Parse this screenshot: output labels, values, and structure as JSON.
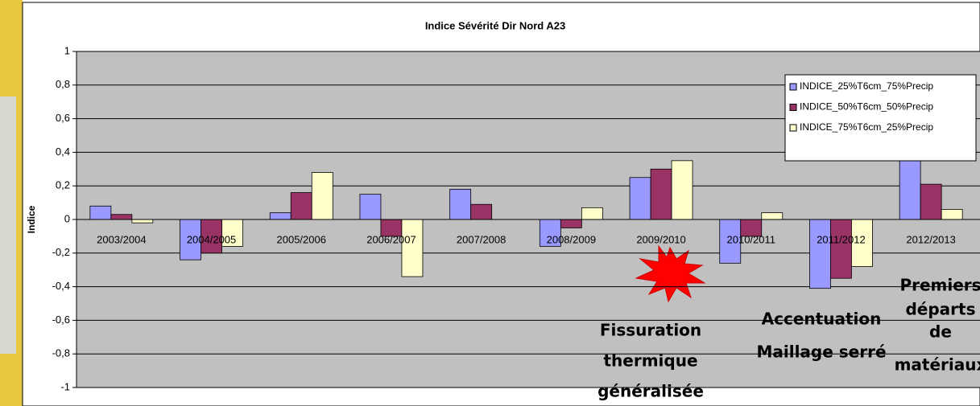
{
  "chart_data": {
    "type": "bar",
    "title": "Indice Sévérité Dir Nord A23",
    "y_label": "Indice",
    "categories": [
      "2003/2004",
      "2004/2005",
      "2005/2006",
      "2006/2007",
      "2007/2008",
      "2008/2009",
      "2009/2010",
      "2010/2011",
      "2011/2012",
      "2012/2013"
    ],
    "series": [
      {
        "name": "INDICE_25%T6cm_75%Precip",
        "color": "#9999ff",
        "values": [
          0.08,
          -0.24,
          0.04,
          0.15,
          0.18,
          -0.16,
          0.25,
          -0.26,
          -0.41,
          0.36
        ]
      },
      {
        "name": "INDICE_50%T6cm_50%Precip",
        "color": "#993366",
        "values": [
          0.03,
          -0.2,
          0.16,
          -0.1,
          0.09,
          -0.05,
          0.3,
          -0.1,
          -0.35,
          0.21
        ]
      },
      {
        "name": "INDICE_75%T6cm_25%Precip",
        "color": "#ffffcc",
        "values": [
          -0.02,
          -0.16,
          0.28,
          -0.34,
          0,
          0.07,
          0.35,
          0.04,
          -0.28,
          0.06
        ]
      }
    ],
    "ylim": [
      -1,
      1
    ],
    "yticks": [
      -1,
      {
        "value": -0.8,
        "label": "-0,8"
      },
      {
        "value": -0.6,
        "label": "-0,6"
      },
      {
        "value": -0.4,
        "label": "-0,4"
      },
      {
        "value": -0.2,
        "label": "-0,2"
      },
      0,
      {
        "value": 0.2,
        "label": "0,2"
      },
      {
        "value": 0.4,
        "label": "0,4"
      },
      {
        "value": 0.6,
        "label": "0,6"
      },
      {
        "value": 0.8,
        "label": "0,8"
      },
      1
    ],
    "grid": true,
    "legend": "upper right",
    "annotations": [
      {
        "lines": [
          "Fissuration",
          "thermique",
          "généralisée"
        ]
      },
      {
        "lines": [
          "Accentuation",
          "Maillage serré"
        ]
      },
      {
        "lines": [
          "Premiers",
          "départs",
          "de",
          "matériaux"
        ]
      }
    ]
  }
}
